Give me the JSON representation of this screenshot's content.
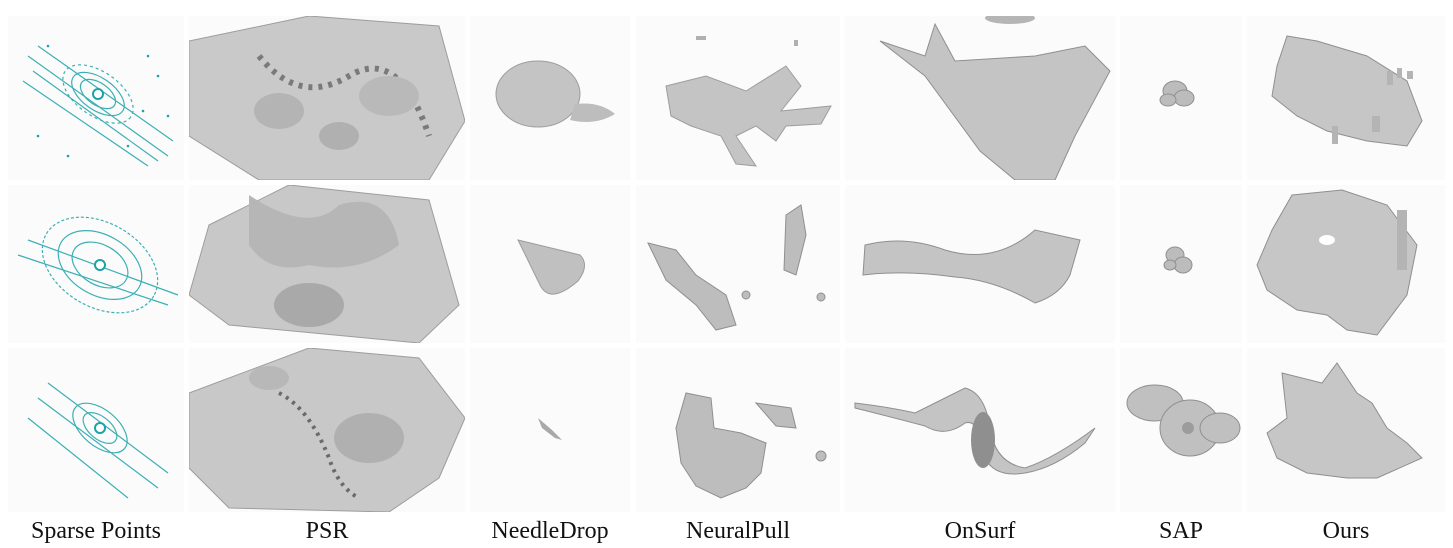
{
  "columns": [
    {
      "key": "sparse",
      "label": "Sparse Points"
    },
    {
      "key": "psr",
      "label": "PSR"
    },
    {
      "key": "needledrop",
      "label": "NeedleDrop"
    },
    {
      "key": "neuralpull",
      "label": "NeuralPull"
    },
    {
      "key": "onsurf",
      "label": "OnSurf"
    },
    {
      "key": "sap",
      "label": "SAP"
    },
    {
      "key": "ours",
      "label": "Ours"
    }
  ],
  "colors": {
    "point_cloud": "#1aa3a8",
    "mesh_fill": "#c9c9c9",
    "mesh_shade": "#9d9d9d",
    "mesh_edge": "#7a7a7a",
    "background": "#fbfbfb"
  }
}
